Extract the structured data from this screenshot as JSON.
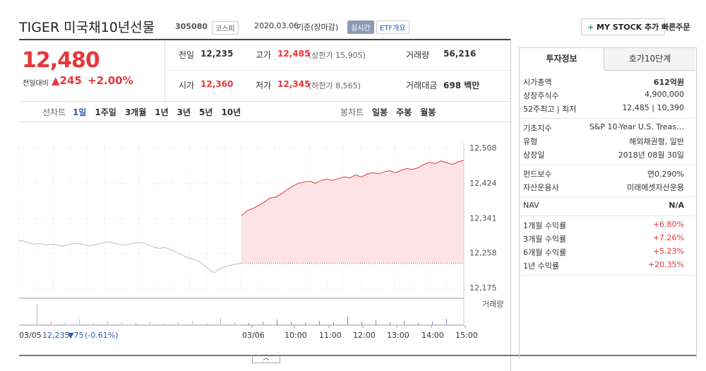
{
  "header": {
    "name": "TIGER 미국채10년선물",
    "code": "305080",
    "market": "코스피",
    "date": "2020.03.06",
    "basis": "기준(장마감)",
    "realtime": "실시간",
    "etf": "ETF개요",
    "mystock": "MY STOCK 추가",
    "quick": "빠른주문"
  },
  "price": {
    "current": "12,480",
    "change_label": "전일대비",
    "change": "245",
    "pct": "+2.00%"
  },
  "stats": [
    {
      "label": "전일",
      "value": "12,235",
      "red": false
    },
    {
      "label": "고가",
      "value": "12,485",
      "extra": "(상한가 15,905)",
      "red": true
    },
    {
      "label": "거래량",
      "value": "56,216",
      "red": false
    },
    {
      "label": "시가",
      "value": "12,360",
      "red": true
    },
    {
      "label": "저가",
      "value": "12,345",
      "extra": "(하한가 8,565)",
      "red": true
    },
    {
      "label": "거래대금",
      "value": "698 백만",
      "red": false
    }
  ],
  "nav": {
    "line_label": "선차트",
    "periods": [
      "1일",
      "1주일",
      "3개월",
      "1년",
      "3년",
      "5년",
      "10년"
    ],
    "candle_label": "봉차트",
    "candles": [
      "일봉",
      "주봉",
      "월봉"
    ]
  },
  "chart_data": {
    "type": "line",
    "ylim": [
      12175,
      12508
    ],
    "yticks": [
      {
        "value": 12175,
        "label": "12,175"
      },
      {
        "value": 12258,
        "label": "12,258"
      },
      {
        "value": 12341,
        "label": "12,341"
      },
      {
        "value": 12424,
        "label": "12,424"
      },
      {
        "value": 12508,
        "label": "12,508"
      }
    ],
    "xlabels": [
      "03/05",
      "03/06",
      "10:00",
      "11:00",
      "12:00",
      "13:00",
      "14:00",
      "15:00"
    ],
    "prev_close": 12235,
    "series": [
      {
        "name": "03/05",
        "color": "#bbbbbb",
        "values": [
          12290,
          12285,
          12280,
          12282,
          12278,
          12280,
          12275,
          12278,
          12282,
          12280,
          12276,
          12279,
          12283,
          12286,
          12281,
          12278,
          12280,
          12284,
          12282,
          12276,
          12270,
          12272,
          12265,
          12258,
          12250,
          12245,
          12238,
          12225,
          12212,
          12222,
          12228,
          12232,
          12235
        ]
      },
      {
        "name": "03/06",
        "color": "#e8363b",
        "values": [
          12348,
          12360,
          12365,
          12372,
          12380,
          12390,
          12392,
          12400,
          12410,
          12418,
          12425,
          12428,
          12430,
          12425,
          12432,
          12435,
          12432,
          12436,
          12440,
          12438,
          12445,
          12440,
          12447,
          12450,
          12448,
          12452,
          12455,
          12450,
          12456,
          12460,
          12458,
          12462,
          12470,
          12475,
          12472,
          12478,
          12474,
          12470,
          12476,
          12480
        ]
      }
    ],
    "volume_label": "거래량",
    "volume": [
      30,
      5,
      4,
      8,
      3,
      6,
      4,
      3,
      5,
      2,
      4,
      6,
      3,
      10,
      4,
      3,
      5,
      8,
      4,
      3,
      6,
      4,
      12,
      5,
      7,
      4,
      6,
      3,
      5,
      9
    ],
    "footer": {
      "date": "03/05",
      "close": "12,235",
      "change": "▼75",
      "pct": "(-0.61%)"
    }
  },
  "info": {
    "tabs": [
      "투자정보",
      "호가10단계"
    ],
    "groups": [
      [
        {
          "label": "시가총액",
          "value": "612억원"
        },
        {
          "label": "상장주식수",
          "value": "4,900,000"
        },
        {
          "label": "52주최고 | 최저",
          "value": "12,485 | 10,390"
        }
      ],
      [
        {
          "label": "기초지수",
          "value": "S&P 10-Year U.S. Treas…"
        },
        {
          "label": "유형",
          "value": "해외채권형, 일반"
        },
        {
          "label": "상장일",
          "value": "2018년 08월 30일"
        }
      ],
      [
        {
          "label": "펀드보수",
          "value": "연0.290%"
        },
        {
          "label": "자산운용사",
          "value": "미래에셋자산운용"
        }
      ],
      [
        {
          "label": "NAV",
          "value": "N/A"
        }
      ],
      [
        {
          "label": "1개월 수익률",
          "value": "+6.80%"
        },
        {
          "label": "3개월 수익률",
          "value": "+7.26%"
        },
        {
          "label": "6개월 수익률",
          "value": "+5.23%"
        },
        {
          "label": "1년 수익률",
          "value": "+20.35%"
        }
      ]
    ]
  }
}
